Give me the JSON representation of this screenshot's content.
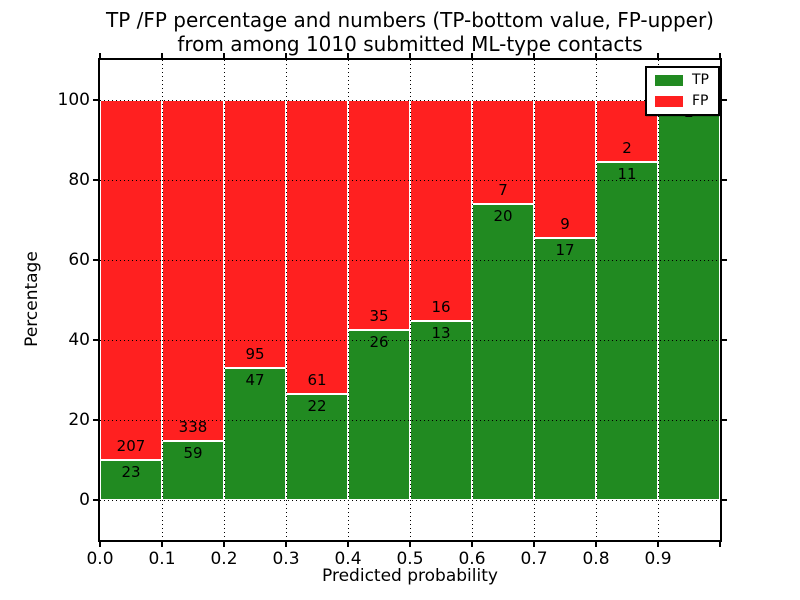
{
  "chart_data": {
    "type": "bar",
    "stacked": true,
    "normalized_to_percent": true,
    "title_lines": [
      "TP /FP percentage and numbers (TP-bottom value, FP-upper)",
      "from among 1010 submitted ML-type contacts"
    ],
    "xlabel": "Predicted probability",
    "ylabel": "Percentage",
    "x_tick_labels": [
      "0.0",
      "0.1",
      "0.2",
      "0.3",
      "0.4",
      "0.5",
      "0.6",
      "0.7",
      "0.8",
      "0.9"
    ],
    "y_tick_values": [
      0,
      20,
      40,
      60,
      80,
      100
    ],
    "xlim": [
      0.0,
      1.0
    ],
    "ylim": [
      -10,
      110
    ],
    "bin_width": 0.1,
    "grid": "dotted",
    "total_contacts": 1010,
    "categories": [
      "0.0",
      "0.1",
      "0.2",
      "0.3",
      "0.4",
      "0.5",
      "0.6",
      "0.7",
      "0.8",
      "0.9"
    ],
    "series": [
      {
        "name": "TP",
        "color": "#218a21",
        "values": [
          23,
          59,
          47,
          22,
          26,
          13,
          20,
          17,
          11,
          2
        ]
      },
      {
        "name": "FP",
        "color": "#ff2020",
        "values": [
          207,
          338,
          95,
          61,
          35,
          16,
          7,
          9,
          2,
          0
        ]
      }
    ],
    "tp_percent_of_bin": [
      10.0,
      14.86,
      33.1,
      26.51,
      42.62,
      44.83,
      74.07,
      65.38,
      84.62,
      100.0
    ],
    "legend": {
      "position": "upper right",
      "entries": [
        {
          "label": "TP",
          "color": "#218a21"
        },
        {
          "label": "FP",
          "color": "#ff2020"
        }
      ]
    }
  }
}
